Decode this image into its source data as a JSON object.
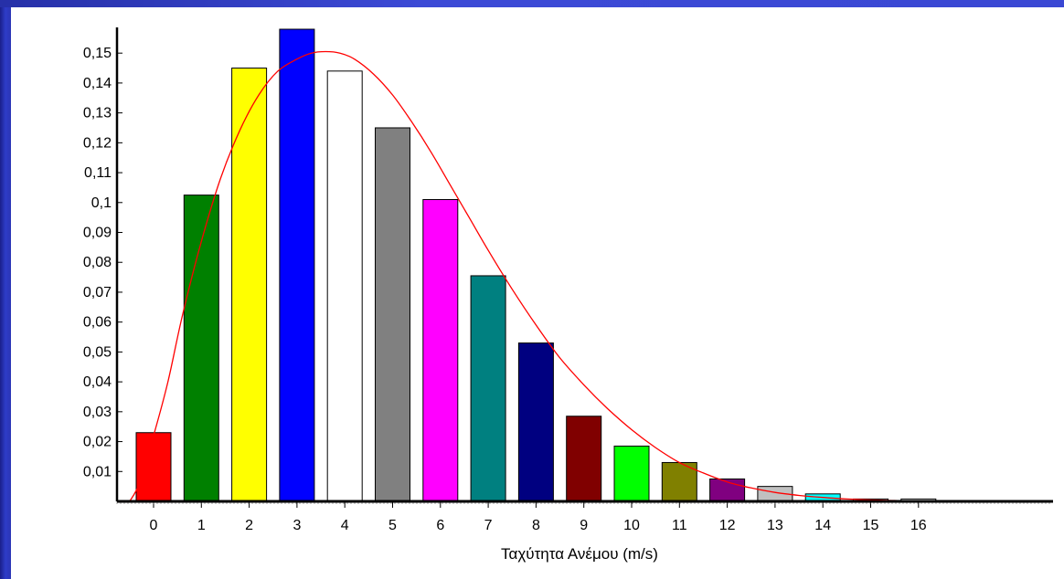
{
  "chart_data": {
    "type": "bar",
    "xlabel": "Ταχύτητα Ανέμου (m/s)",
    "ylabel": "",
    "categories": [
      "0",
      "1",
      "2",
      "3",
      "4",
      "5",
      "6",
      "7",
      "8",
      "9",
      "10",
      "11",
      "12",
      "13",
      "14",
      "15",
      "16"
    ],
    "values": [
      0.023,
      0.1025,
      0.145,
      0.158,
      0.144,
      0.125,
      0.101,
      0.0755,
      0.053,
      0.0285,
      0.0185,
      0.013,
      0.0075,
      0.005,
      0.0025,
      0.0008,
      0.0008
    ],
    "bar_colors": [
      "#ff0000",
      "#008000",
      "#ffff00",
      "#0000ff",
      "#ffffff",
      "#808080",
      "#ff00ff",
      "#008080",
      "#000080",
      "#800000",
      "#00ff00",
      "#808000",
      "#800080",
      "#c0c0c0",
      "#00ffff",
      "#ffffff",
      "#ffffff"
    ],
    "ylim": [
      0,
      0.158
    ],
    "yticks": [
      "0,01",
      "0,02",
      "0,03",
      "0,04",
      "0,05",
      "0,06",
      "0,07",
      "0,08",
      "0,09",
      "0,1",
      "0,11",
      "0,12",
      "0,13",
      "0,14",
      "0,15"
    ],
    "ytick_values": [
      0.01,
      0.02,
      0.03,
      0.04,
      0.05,
      0.06,
      0.07,
      0.08,
      0.09,
      0.1,
      0.11,
      0.12,
      0.13,
      0.14,
      0.15
    ],
    "curve": {
      "color": "#ff0000",
      "x": [
        -0.5,
        -0.3,
        0,
        0.3,
        0.6,
        1,
        1.4,
        1.8,
        2.2,
        2.6,
        3,
        3.3,
        3.6,
        3.9,
        4.2,
        4.6,
        5,
        5.4,
        5.8,
        6.2,
        6.6,
        7,
        7.5,
        8,
        8.5,
        9,
        9.5,
        10,
        10.5,
        11,
        11.5,
        12,
        12.5,
        13,
        13.5,
        14,
        14.5,
        15,
        15.5,
        16,
        16.5,
        17,
        17.5,
        18
      ],
      "y": [
        0,
        0.006,
        0.022,
        0.04,
        0.062,
        0.087,
        0.108,
        0.124,
        0.136,
        0.144,
        0.148,
        0.15,
        0.1505,
        0.15,
        0.148,
        0.143,
        0.136,
        0.127,
        0.117,
        0.106,
        0.095,
        0.084,
        0.071,
        0.059,
        0.048,
        0.039,
        0.031,
        0.024,
        0.018,
        0.013,
        0.0095,
        0.0065,
        0.0045,
        0.003,
        0.002,
        0.0013,
        0.0008,
        0.0005,
        0.0003,
        0.0002,
        0.0001,
        0.0001,
        5e-05,
        0
      ]
    }
  }
}
